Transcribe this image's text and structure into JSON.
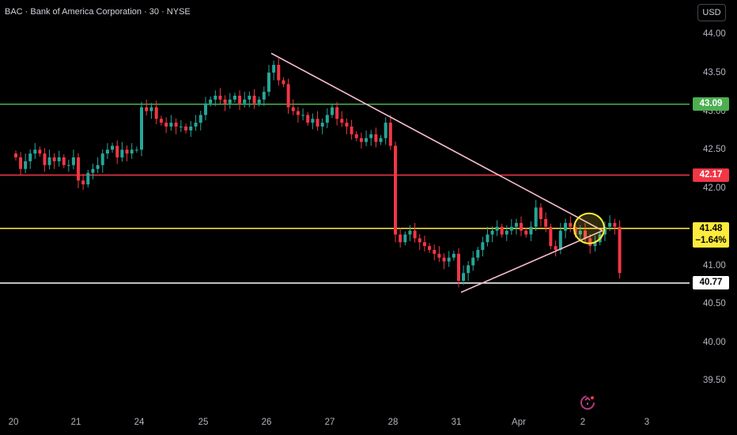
{
  "header": {
    "symbol_line": "BAC · Bank of America Corporation · 30 · NYSE"
  },
  "currency_button": "USD",
  "price_axis": {
    "ticks": [
      "44.00",
      "43.50",
      "43.00",
      "42.50",
      "42.00",
      "41.00",
      "40.50",
      "40.00",
      "39.50"
    ]
  },
  "time_axis": {
    "ticks": [
      "20",
      "21",
      "24",
      "25",
      "26",
      "27",
      "28",
      "31",
      "Apr",
      "2",
      "3"
    ]
  },
  "price_tags": {
    "green": "43.09",
    "red": "42.17",
    "yellow": "41.48",
    "yellow_change": "−1.64%",
    "white": "40.77"
  },
  "colors": {
    "up": "#26a69a",
    "down": "#f23645",
    "green_line": "#4caf50",
    "red_line": "#f23645",
    "yellow_line": "#ffeb3b",
    "white_line": "#ffffff",
    "trendline": "#f8bbd0"
  },
  "icons": {
    "watermark": "tradingview-refresh-icon"
  },
  "chart_data": {
    "type": "candlestick",
    "title": "BAC · Bank of America Corporation · 30 · NYSE",
    "ylim": [
      39.3,
      44.2
    ],
    "y_ticks": [
      44.0,
      43.5,
      43.0,
      42.5,
      42.0,
      41.0,
      40.5,
      40.0,
      39.5
    ],
    "x_tick_labels": [
      "20",
      "21",
      "24",
      "25",
      "26",
      "27",
      "28",
      "31",
      "Apr",
      "2",
      "3"
    ],
    "horizontal_levels": [
      {
        "price": 43.09,
        "color": "green"
      },
      {
        "price": 42.17,
        "color": "red"
      },
      {
        "price": 41.48,
        "color": "yellow"
      },
      {
        "price": 40.77,
        "color": "white"
      }
    ],
    "trendlines": [
      {
        "from": {
          "bar": 0,
          "day": "26",
          "price": 43.75
        },
        "to": {
          "day": "2",
          "price": 41.45
        }
      },
      {
        "from": {
          "day": "31",
          "price": 40.65
        },
        "to": {
          "day": "2",
          "price": 41.45
        }
      }
    ],
    "position_box": {
      "entry": 41.48,
      "target": 43.09,
      "stop": 40.77
    },
    "bars_per_day": 13,
    "closes": [
      42.4,
      42.25,
      42.35,
      42.45,
      42.5,
      42.45,
      42.3,
      42.4,
      42.35,
      42.4,
      42.3,
      42.3,
      42.4,
      42.1,
      42.05,
      42.2,
      42.25,
      42.3,
      42.45,
      42.5,
      42.55,
      42.4,
      42.5,
      42.45,
      42.5,
      42.5,
      43.05,
      43.0,
      43.05,
      42.9,
      42.85,
      42.8,
      42.85,
      42.8,
      42.8,
      42.75,
      42.8,
      42.85,
      42.95,
      43.1,
      43.15,
      43.2,
      43.15,
      43.1,
      43.15,
      43.2,
      43.1,
      43.15,
      43.2,
      43.1,
      43.15,
      43.25,
      43.5,
      43.6,
      43.4,
      43.35,
      43.05,
      43.0,
      42.95,
      42.95,
      42.85,
      42.9,
      42.8,
      42.85,
      42.95,
      43.05,
      42.9,
      42.85,
      42.8,
      42.7,
      42.65,
      42.6,
      42.65,
      42.7,
      42.6,
      42.65,
      42.85,
      42.55,
      41.4,
      41.3,
      41.4,
      41.45,
      41.35,
      41.3,
      41.25,
      41.2,
      41.15,
      41.1,
      41.05,
      41.1,
      41.15,
      40.8,
      40.9,
      41.0,
      41.1,
      41.2,
      41.3,
      41.4,
      41.45,
      41.5,
      41.4,
      41.45,
      41.5,
      41.55,
      41.45,
      41.4,
      41.5,
      41.75,
      41.6,
      41.5,
      41.25,
      41.2,
      41.45,
      41.55,
      41.5,
      41.4,
      41.45,
      41.35,
      41.25,
      41.3,
      41.4,
      41.5,
      41.55,
      41.5,
      40.9
    ]
  }
}
